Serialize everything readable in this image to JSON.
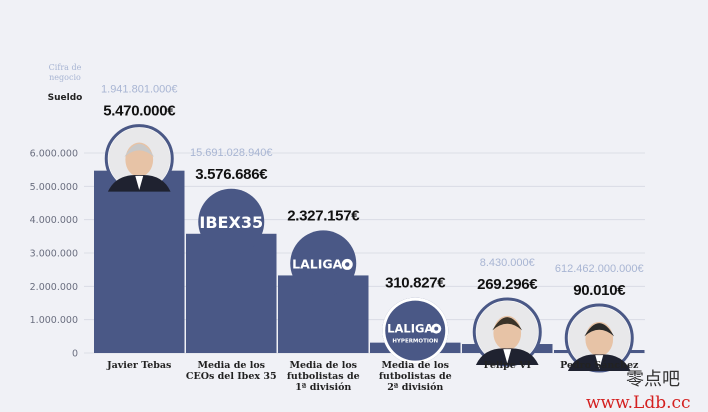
{
  "chart_data": {
    "type": "bar",
    "ylim": [
      0,
      6000000
    ],
    "yticks": [
      "6.000.000",
      "5.000.000",
      "4.000.000",
      "3.000.000",
      "2.000.000",
      "1.000.000",
      "0"
    ],
    "ytick_values": [
      6000000,
      5000000,
      4000000,
      3000000,
      2000000,
      1000000,
      0
    ],
    "legend": {
      "revenue_label": "Cifra de negocio",
      "salary_label": "Sueldo"
    },
    "bar_color": "#4a5886",
    "revenue_color": "#a8b5d3",
    "categories": [
      {
        "lines": [
          "Javier Tebas"
        ],
        "icon": "portrait-icon"
      },
      {
        "lines": [
          "Media de los",
          "CEOs del Ibex 35"
        ],
        "icon": "ibex35-logo"
      },
      {
        "lines": [
          "Media de los",
          "futbolistas de",
          "1ª división"
        ],
        "icon": "laliga-logo"
      },
      {
        "lines": [
          "Media de los",
          "futbolistas de",
          "2ª división"
        ],
        "icon": "laliga-hypermotion-logo"
      },
      {
        "lines": [
          "Felipe VI"
        ],
        "icon": "portrait-icon"
      },
      {
        "lines": [
          "Pedro Sánchez"
        ],
        "icon": "portrait-icon"
      }
    ],
    "series": [
      {
        "name": "Sueldo",
        "values": [
          5470000,
          3576686,
          2327157,
          310827,
          269296,
          90010
        ],
        "labels": [
          "5.470.000€",
          "3.576.686€",
          "2.327.157€",
          "310.827€",
          "269.296€",
          "90.010€"
        ]
      },
      {
        "name": "Cifra de negocio",
        "labels": [
          "1.941.801.000€",
          "15.691.028.940€",
          "",
          "",
          "8.430.000€",
          "612.462.000.000€"
        ]
      }
    ]
  },
  "logos": {
    "ibex": "IBEX35",
    "laliga": "LALIGA",
    "hypermotion": "HYPERMOTION"
  },
  "watermark": {
    "cn": "零点吧",
    "url": "www.Ldb.cc"
  }
}
